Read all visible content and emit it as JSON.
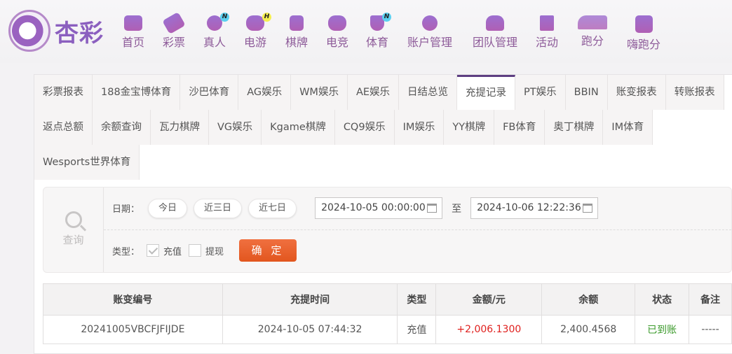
{
  "brand": {
    "name": "杏彩"
  },
  "nav": [
    {
      "label": "首页",
      "icon": "home-icon"
    },
    {
      "label": "彩票",
      "icon": "ticket-icon"
    },
    {
      "label": "真人",
      "icon": "dealer-icon",
      "badge": "N"
    },
    {
      "label": "电游",
      "icon": "gamepad-icon",
      "badge": "H"
    },
    {
      "label": "棋牌",
      "icon": "cards-icon"
    },
    {
      "label": "电竞",
      "icon": "gamepad-icon"
    },
    {
      "label": "体育",
      "icon": "trophy-icon",
      "badge": "N"
    },
    {
      "label": "账户管理",
      "icon": "yen-coin-icon"
    },
    {
      "label": "团队管理",
      "icon": "team-icon"
    },
    {
      "label": "活动",
      "icon": "gift-icon"
    },
    {
      "label": "跑分",
      "icon": "rhino-icon"
    },
    {
      "label": "嗨跑分",
      "icon": "hi-app-icon"
    }
  ],
  "tabs": {
    "row1": [
      "彩票报表",
      "188金宝博体育",
      "沙巴体育",
      "AG娱乐",
      "WM娱乐",
      "AE娱乐",
      "日结总览",
      "充提记录",
      "PT娱乐",
      "BBIN",
      "账变报表",
      "转账报表"
    ],
    "row2": [
      "返点总额",
      "余额查询",
      "瓦力棋牌",
      "VG娱乐",
      "Kgame棋牌",
      "CQ9娱乐",
      "IM娱乐",
      "YY棋牌",
      "FB体育",
      "奥丁棋牌",
      "IM体育"
    ],
    "row3": [
      "Wesports世界体育"
    ],
    "active": "充提记录"
  },
  "query": {
    "label": "查询",
    "date_label": "日期：",
    "quick": [
      "今日",
      "近三日",
      "近七日"
    ],
    "start": "2024-10-05 00:00:00",
    "to": "至",
    "end": "2024-10-06 12:22:36",
    "type_label": "类型：",
    "types": [
      {
        "label": "充值",
        "checked": true
      },
      {
        "label": "提现",
        "checked": false
      }
    ],
    "confirm": "确 定"
  },
  "table": {
    "headers": [
      "账变编号",
      "充提时间",
      "类型",
      "金额/元",
      "余额",
      "状态",
      "备注"
    ],
    "rows": [
      [
        "20241005VBCFJFIJDE",
        "2024-10-05 07:44:32",
        "充值",
        "+2,006.1300",
        "2,400.4568",
        "已到账",
        "-----"
      ]
    ]
  },
  "colors": {
    "accent": "#5e3f82",
    "nav_text": "#8d5a99",
    "confirm": "#e85d25",
    "amount": "#e0201e",
    "status": "#3a9a2a"
  }
}
